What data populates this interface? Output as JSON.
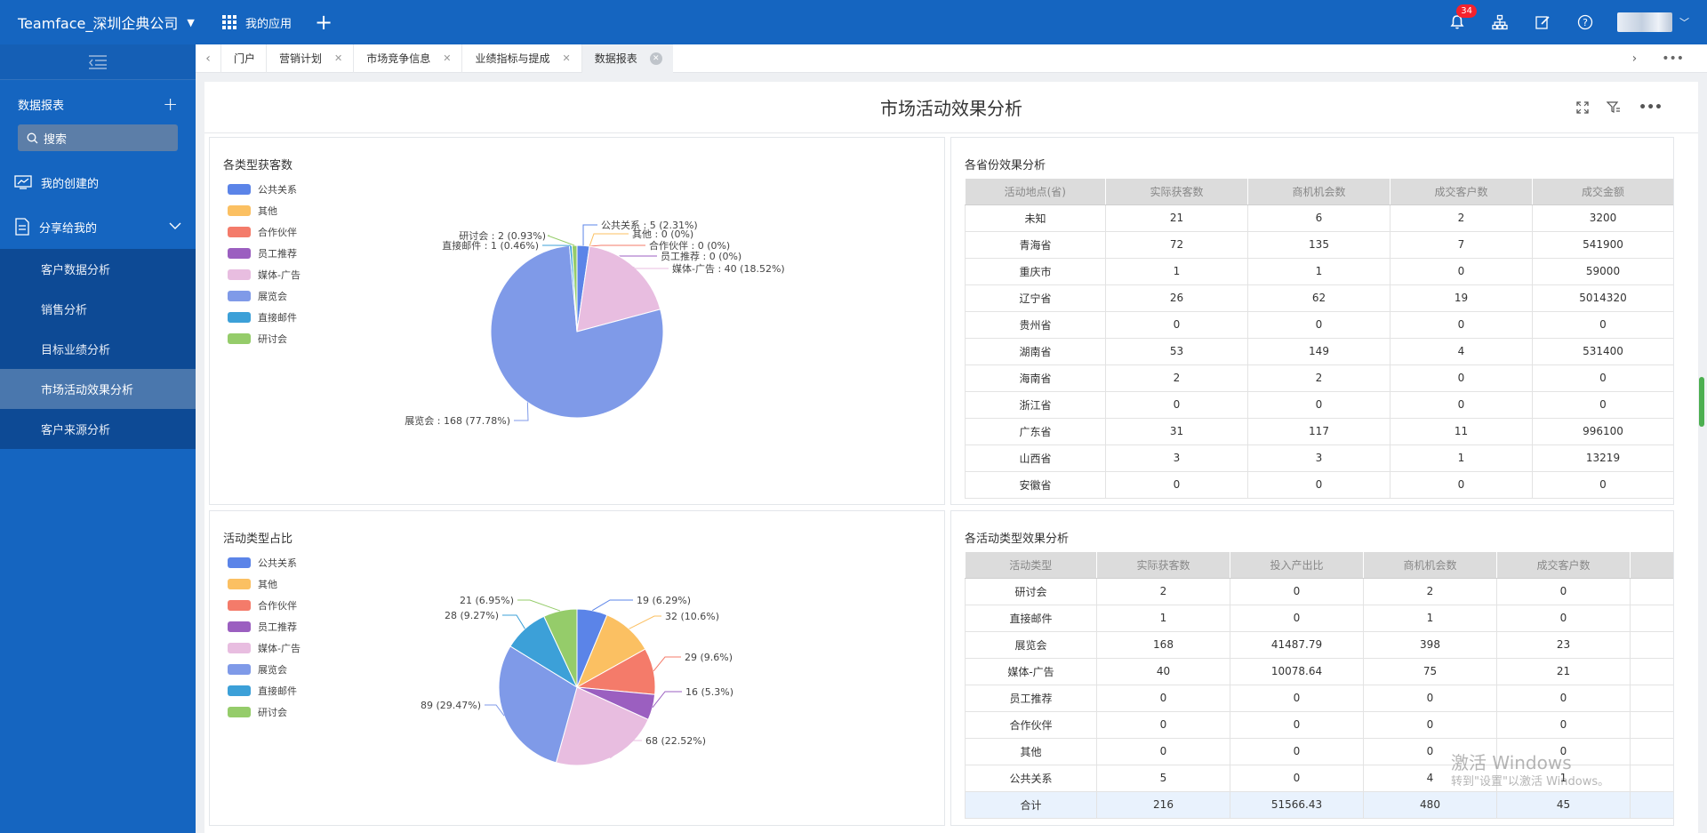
{
  "topbar": {
    "company": "Teamface_深圳企典公司",
    "apps_label": "我的应用",
    "notification_count": "34"
  },
  "sidebar": {
    "section_title": "数据报表",
    "search_placeholder": "搜索",
    "items": [
      {
        "label": "我的创建的"
      },
      {
        "label": "分享给我的"
      }
    ],
    "sub_items": [
      {
        "label": "客户数据分析"
      },
      {
        "label": "销售分析"
      },
      {
        "label": "目标业绩分析"
      },
      {
        "label": "市场活动效果分析"
      },
      {
        "label": "客户来源分析"
      }
    ]
  },
  "tabs": [
    {
      "label": "门户"
    },
    {
      "label": "营销计划"
    },
    {
      "label": "市场竞争信息"
    },
    {
      "label": "业绩指标与提成"
    },
    {
      "label": "数据报表"
    }
  ],
  "report": {
    "title": "市场活动效果分析"
  },
  "panels": {
    "p1_title": "各类型获客数",
    "p2_title": "各省份效果分析",
    "p3_title": "活动类型占比",
    "p4_title": "各活动类型效果分析"
  },
  "legend": [
    {
      "label": "公共关系",
      "color": "#5b84e8"
    },
    {
      "label": "其他",
      "color": "#fbc062"
    },
    {
      "label": "合作伙伴",
      "color": "#f47b6a"
    },
    {
      "label": "员工推荐",
      "color": "#9b5fc0"
    },
    {
      "label": "媒体-广告",
      "color": "#e8bde0"
    },
    {
      "label": "展览会",
      "color": "#7f9ae8"
    },
    {
      "label": "直接邮件",
      "color": "#3ca0d8"
    },
    {
      "label": "研讨会",
      "color": "#95cc6a"
    }
  ],
  "chart_data": [
    {
      "type": "pie",
      "title": "各类型获客数",
      "slices": [
        {
          "name": "公共关系",
          "value": 5,
          "label": "公共关系 : 5 (2.31%)"
        },
        {
          "name": "其他",
          "value": 0,
          "label": "其他 : 0 (0%)"
        },
        {
          "name": "合作伙伴",
          "value": 0,
          "label": "合作伙伴 : 0 (0%)"
        },
        {
          "name": "员工推荐",
          "value": 0,
          "label": "员工推荐 : 0 (0%)"
        },
        {
          "name": "媒体-广告",
          "value": 40,
          "label": "媒体-广告 : 40 (18.52%)"
        },
        {
          "name": "展览会",
          "value": 168,
          "label": "展览会 : 168 (77.78%)"
        },
        {
          "name": "直接邮件",
          "value": 1,
          "label": "直接邮件 : 1 (0.46%)"
        },
        {
          "name": "研讨会",
          "value": 2,
          "label": "研讨会 : 2 (0.93%)"
        }
      ]
    },
    {
      "type": "pie",
      "title": "活动类型占比",
      "slices": [
        {
          "name": "公共关系",
          "value": 19,
          "label": "19 (6.29%)"
        },
        {
          "name": "其他",
          "value": 32,
          "label": "32 (10.6%)"
        },
        {
          "name": "合作伙伴",
          "value": 29,
          "label": "29 (9.6%)"
        },
        {
          "name": "员工推荐",
          "value": 16,
          "label": "16 (5.3%)"
        },
        {
          "name": "媒体-广告",
          "value": 68,
          "label": "68 (22.52%)"
        },
        {
          "name": "展览会",
          "value": 89,
          "label": "89 (29.47%)"
        },
        {
          "name": "直接邮件",
          "value": 28,
          "label": "28 (9.27%)"
        },
        {
          "name": "研讨会",
          "value": 21,
          "label": "21 (6.95%)"
        }
      ]
    },
    {
      "type": "table",
      "title": "各省份效果分析",
      "columns": [
        "活动地点(省)",
        "实际获客数",
        "商机机会数",
        "成交客户数",
        "成交金额"
      ],
      "rows": [
        [
          "未知",
          "21",
          "6",
          "2",
          "3200"
        ],
        [
          "青海省",
          "72",
          "135",
          "7",
          "541900"
        ],
        [
          "重庆市",
          "1",
          "1",
          "0",
          "59000"
        ],
        [
          "辽宁省",
          "26",
          "62",
          "19",
          "5014320"
        ],
        [
          "贵州省",
          "0",
          "0",
          "0",
          "0"
        ],
        [
          "湖南省",
          "53",
          "149",
          "4",
          "531400"
        ],
        [
          "海南省",
          "2",
          "2",
          "0",
          "0"
        ],
        [
          "浙江省",
          "0",
          "0",
          "0",
          "0"
        ],
        [
          "广东省",
          "31",
          "117",
          "11",
          "996100"
        ],
        [
          "山西省",
          "3",
          "3",
          "1",
          "13219"
        ],
        [
          "安徽省",
          "0",
          "0",
          "0",
          "0"
        ]
      ]
    },
    {
      "type": "table",
      "title": "各活动类型效果分析",
      "columns": [
        "活动类型",
        "实际获客数",
        "投入产出比",
        "商机机会数",
        "成交客户数"
      ],
      "rows": [
        [
          "研讨会",
          "2",
          "0",
          "2",
          "0"
        ],
        [
          "直接邮件",
          "1",
          "0",
          "1",
          "0"
        ],
        [
          "展览会",
          "168",
          "41487.79",
          "398",
          "23"
        ],
        [
          "媒体-广告",
          "40",
          "10078.64",
          "75",
          "21"
        ],
        [
          "员工推荐",
          "0",
          "0",
          "0",
          "0"
        ],
        [
          "合作伙伴",
          "0",
          "0",
          "0",
          "0"
        ],
        [
          "其他",
          "0",
          "0",
          "0",
          "0"
        ],
        [
          "公共关系",
          "5",
          "0",
          "4",
          "1"
        ]
      ],
      "total": [
        "合计",
        "216",
        "51566.43",
        "480",
        "45"
      ]
    }
  ],
  "watermark": {
    "line1": "激活 Windows",
    "line2": "转到\"设置\"以激活 Windows。"
  }
}
